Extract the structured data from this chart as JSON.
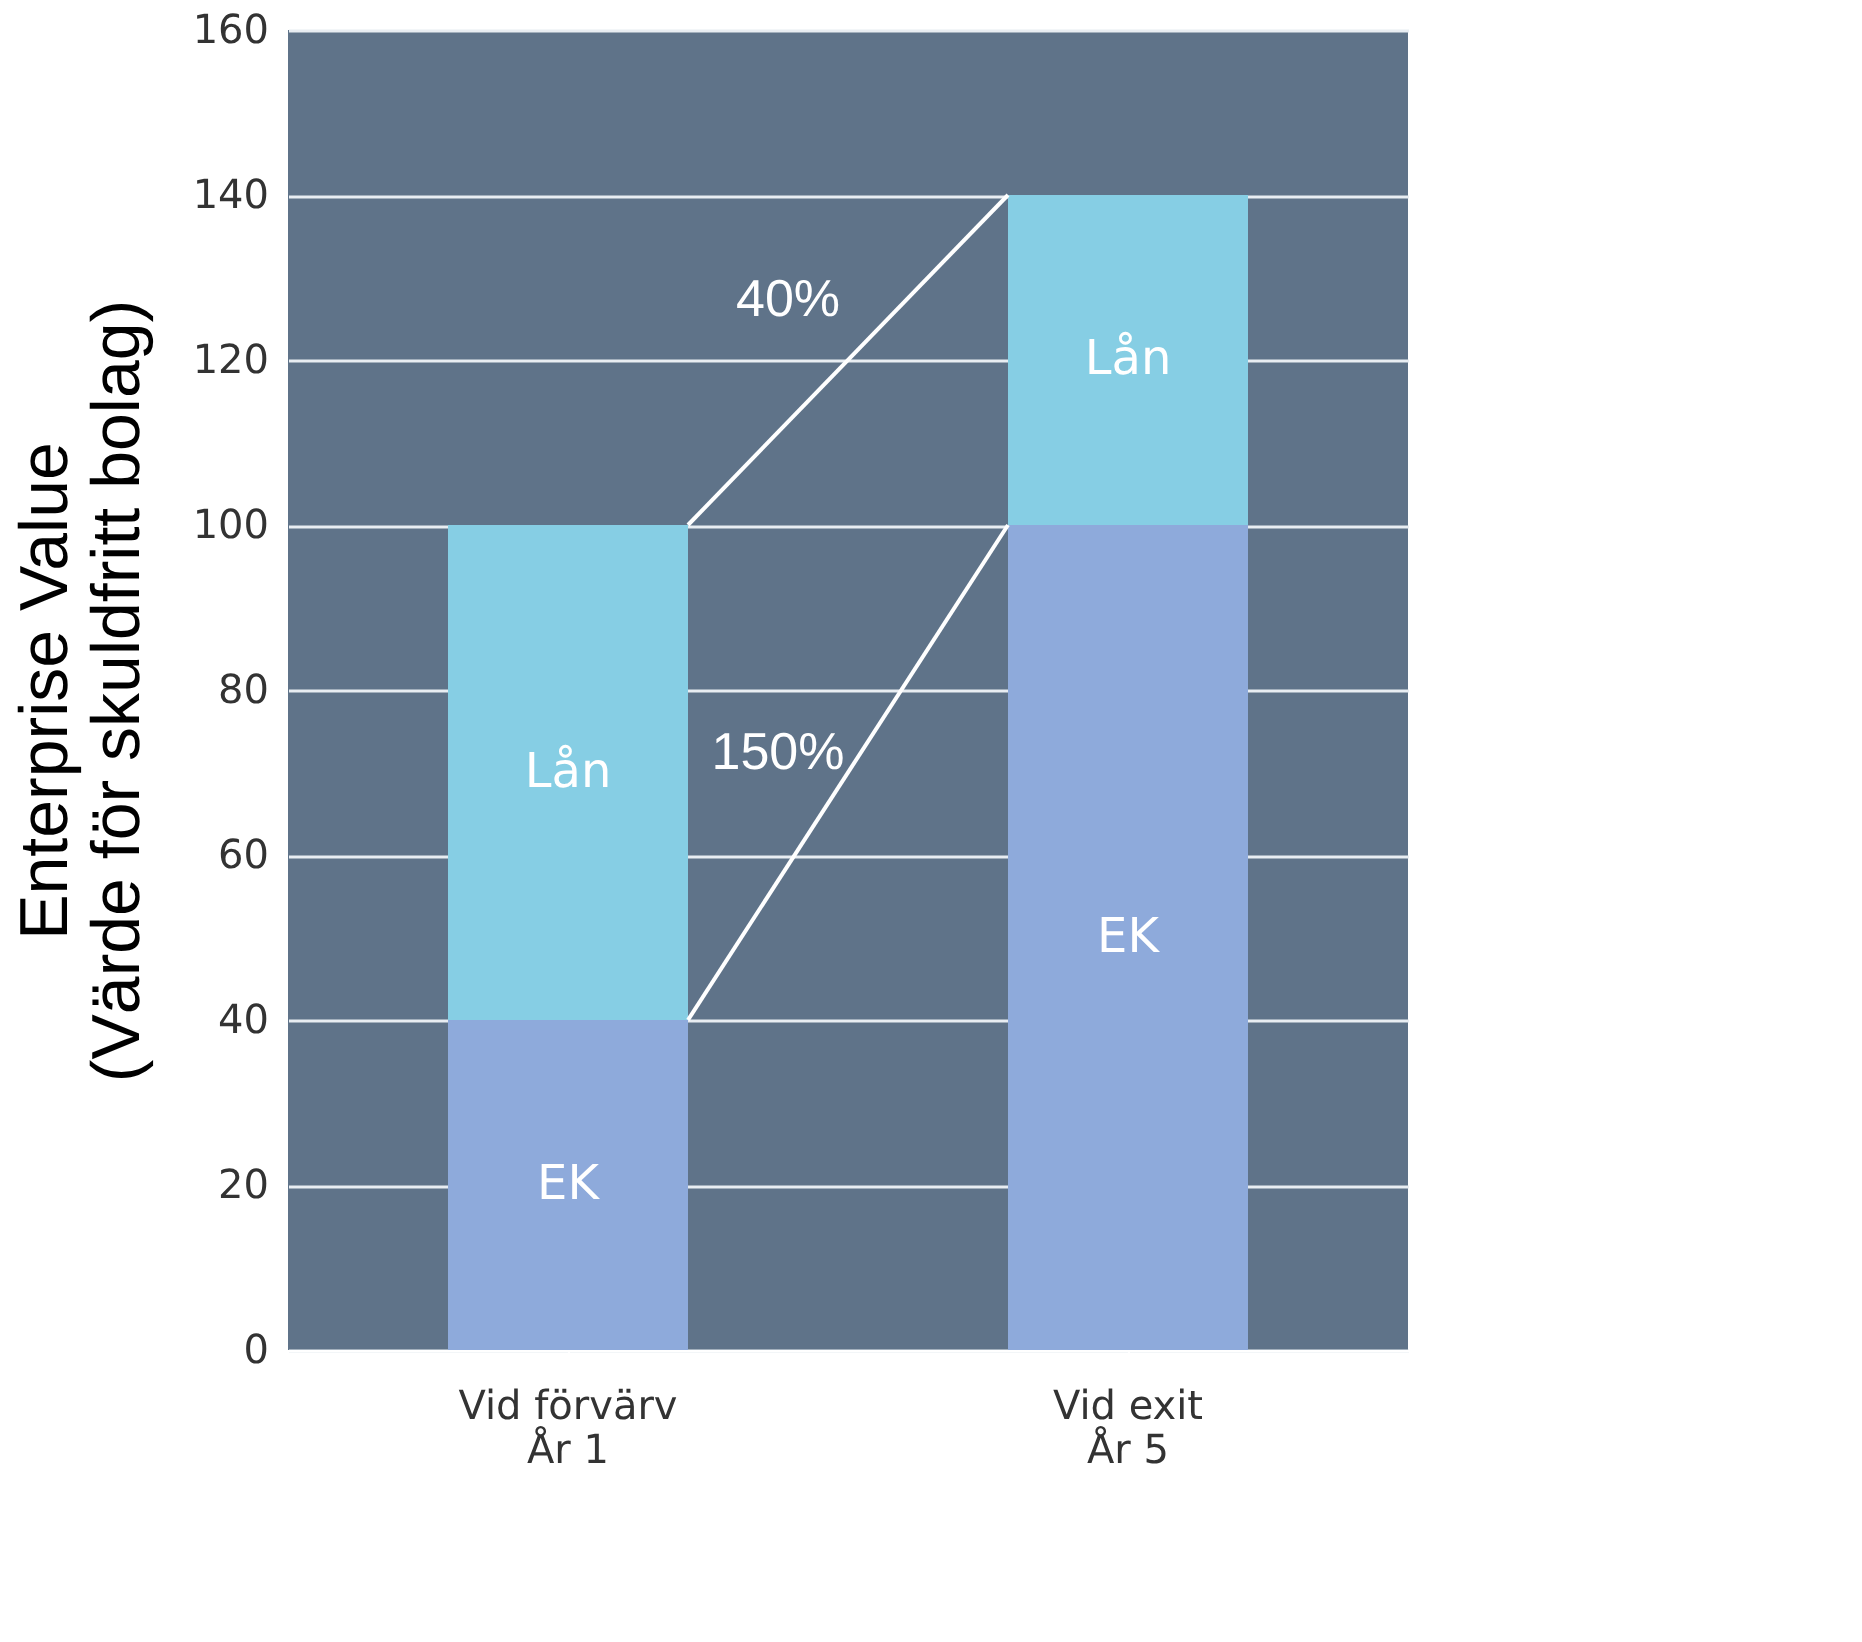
{
  "chart_data": {
    "type": "bar",
    "stacked": true,
    "ylabel": "Enterprise Value\n(Värde för skuldfritt bolag)",
    "categories": [
      "Vid förvärv\nÅr 1",
      "Vid exit\nÅr 5"
    ],
    "series": [
      {
        "name": "EK",
        "color": "#8eaadb",
        "values": [
          40,
          100
        ]
      },
      {
        "name": "Lån",
        "color": "#86cee4",
        "values": [
          60,
          40
        ]
      }
    ],
    "annotations": [
      "40%",
      "150%"
    ],
    "ylim": [
      0,
      160
    ],
    "yticks": [
      0,
      20,
      40,
      60,
      80,
      100,
      120,
      140,
      160
    ],
    "grid": "y",
    "legend": false
  }
}
